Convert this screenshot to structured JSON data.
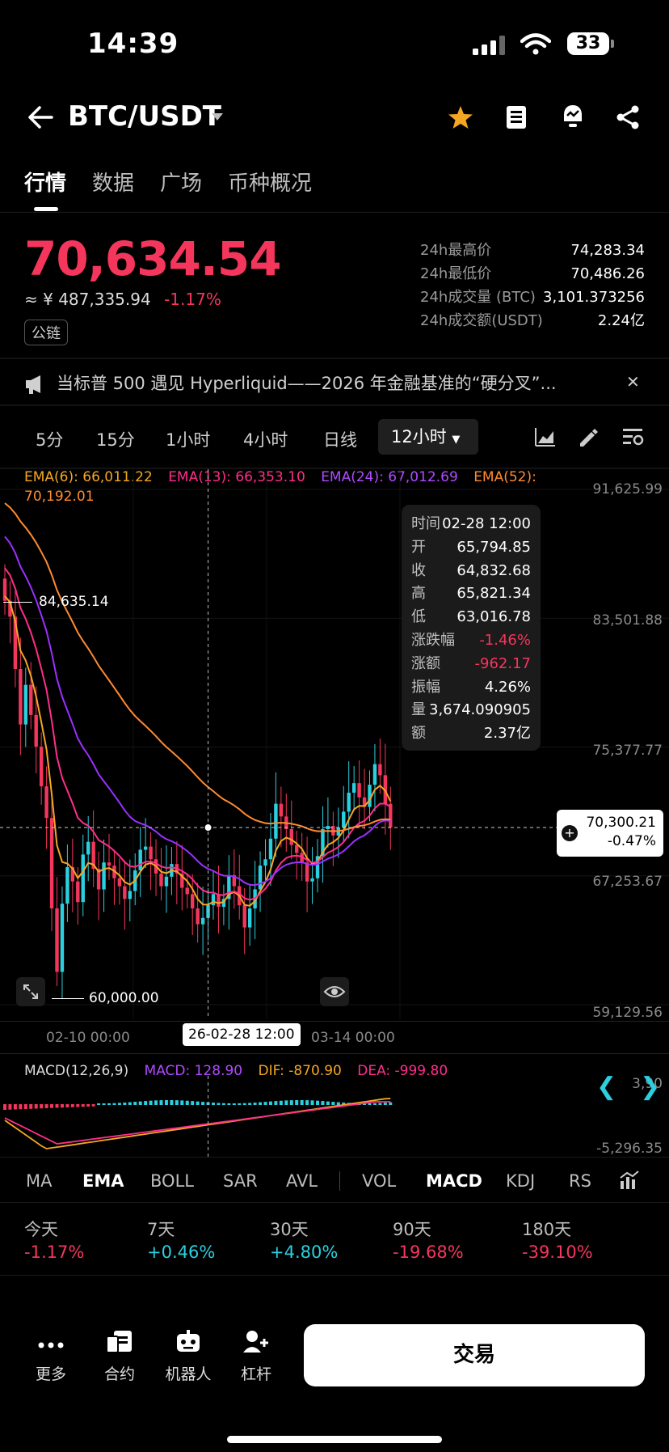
{
  "status_bar": {
    "time": "14:39",
    "battery": "33"
  },
  "header": {
    "pair": "BTC/USDT"
  },
  "tabs": [
    {
      "label": "行情"
    },
    {
      "label": "数据"
    },
    {
      "label": "广场"
    },
    {
      "label": "币种概况"
    }
  ],
  "ticker": {
    "price": "70,634.54",
    "cny": "≈ ¥ 487,335.94",
    "change": "-1.17%",
    "badge": "公链",
    "stats": [
      {
        "label": "24h最高价",
        "value": "74,283.34"
      },
      {
        "label": "24h最低价",
        "value": "70,486.26"
      },
      {
        "label": "24h成交量 (BTC)",
        "value": "3,101.373256"
      },
      {
        "label": "24h成交额(USDT)",
        "value": "2.24亿"
      }
    ]
  },
  "notice": {
    "text": "当标普 500 遇见 Hyperliquid——2026 年金融基准的“硬分叉”..."
  },
  "intervals": [
    {
      "label": "5分"
    },
    {
      "label": "15分"
    },
    {
      "label": "1小时"
    },
    {
      "label": "4小时"
    },
    {
      "label": "日线"
    }
  ],
  "interval_active": "12小时",
  "colors": {
    "ema6": "#f5a623",
    "ema13": "#ff2e8a",
    "ema24": "#9b30ff",
    "ema52": "#ff8a30",
    "up": "#2bd0e0",
    "down": "#f5365c"
  },
  "ema": {
    "ema6": "EMA(6): 66,011.22",
    "ema13": "EMA(13): 66,353.10",
    "ema24": "EMA(24): 67,012.69",
    "ema52": "EMA(52):",
    "ema52_value": "70,192.01"
  },
  "chart_data": {
    "type": "candlestick",
    "y_axis_labels": [
      "91,625.99",
      "83,501.88",
      "75,377.77",
      "67,253.67",
      "59,129.56"
    ],
    "x_axis_labels": [
      "02-10 00:00",
      "26-02-28 12:00",
      "03-14 00:00"
    ],
    "high_marker": "84,635.14",
    "low_marker": "60,000.00",
    "current_price": "70,300.21",
    "current_change": "-0.47%",
    "tooltip": [
      {
        "k": "时间",
        "v": "02-28 12:00"
      },
      {
        "k": "开",
        "v": "65,794.85"
      },
      {
        "k": "收",
        "v": "64,832.68"
      },
      {
        "k": "高",
        "v": "65,821.34"
      },
      {
        "k": "低",
        "v": "63,016.78"
      },
      {
        "k": "涨跌幅",
        "v": "-1.46%"
      },
      {
        "k": "涨额",
        "v": "-962.17"
      },
      {
        "k": "振幅",
        "v": "4.26%"
      },
      {
        "k": "量",
        "v": "3,674.090905"
      },
      {
        "k": "额",
        "v": "2.37亿"
      }
    ],
    "close_series": [
      84600,
      83600,
      80300,
      76800,
      79300,
      77400,
      75400,
      72900,
      70900,
      65200,
      61200,
      65500,
      67800,
      66900,
      65600,
      68600,
      69400,
      67700,
      66400,
      68100,
      67900,
      67100,
      66600,
      65800,
      66300,
      67600,
      68900,
      69100,
      68300,
      67400,
      66600,
      67200,
      68000,
      67400,
      66500,
      66100,
      65200,
      64200,
      64600,
      65400,
      66100,
      65300,
      65800,
      67300,
      66600,
      65400,
      64000,
      65200,
      66400,
      67900,
      68300,
      69600,
      71800,
      71000,
      70200,
      69200,
      68700,
      68100,
      66900,
      67100,
      68500,
      70200,
      70400,
      69800,
      70300,
      71300,
      72500,
      73100,
      72200,
      71600,
      73000,
      74300,
      73600,
      71800,
      70300
    ],
    "macd": {
      "label": "MACD(12,26,9)",
      "macd": "MACD: 128.90",
      "dif": "DIF: -870.90",
      "dea": "DEA: -999.80",
      "axis_top": "3,90",
      "axis_bottom": "-5,296.35"
    }
  },
  "indicators": [
    {
      "label": "MA"
    },
    {
      "label": "EMA"
    },
    {
      "label": "BOLL"
    },
    {
      "label": "SAR"
    },
    {
      "label": "AVL"
    },
    {
      "label": "VOL"
    },
    {
      "label": "MACD"
    },
    {
      "label": "KDJ"
    },
    {
      "label": "RS"
    }
  ],
  "periods": [
    {
      "label": "今天",
      "value": "-1.17%"
    },
    {
      "label": "7天",
      "value": "+0.46%"
    },
    {
      "label": "30天",
      "value": "+4.80%"
    },
    {
      "label": "90天",
      "value": "-19.68%"
    },
    {
      "label": "180天",
      "value": "-39.10%"
    }
  ],
  "bottom_nav": [
    {
      "label": "更多",
      "icon": "more-icon"
    },
    {
      "label": "合约",
      "icon": "contract-icon"
    },
    {
      "label": "机器人",
      "icon": "robot-icon"
    },
    {
      "label": "杠杆",
      "icon": "margin-icon"
    }
  ],
  "trade_button": "交易"
}
